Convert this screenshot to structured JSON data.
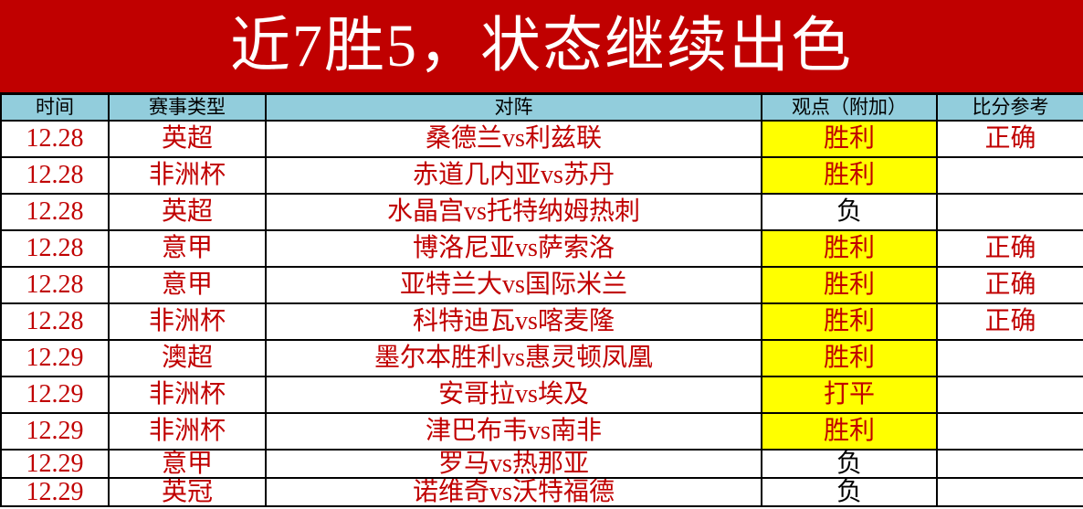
{
  "title": "近7胜5，状态继续出色",
  "headers": [
    "时间",
    "赛事类型",
    "对阵",
    "观点（附加）",
    "比分参考"
  ],
  "colors": {
    "title_bg": "#c00000",
    "header_bg": "#92cddc",
    "highlight": "#ffff00",
    "text": "#c00000"
  },
  "rows": [
    {
      "date": "12.28",
      "league": "英超",
      "match": "桑德兰vs利兹联",
      "pick": "胜利",
      "highlight": true,
      "score": "正确"
    },
    {
      "date": "12.28",
      "league": "非洲杯",
      "match": "赤道几内亚vs苏丹",
      "pick": "胜利",
      "highlight": true,
      "score": ""
    },
    {
      "date": "12.28",
      "league": "英超",
      "match": "水晶宫vs托特纳姆热刺",
      "pick": "负",
      "highlight": false,
      "score": ""
    },
    {
      "date": "12.28",
      "league": "意甲",
      "match": "博洛尼亚vs萨索洛",
      "pick": "胜利",
      "highlight": true,
      "score": "正确"
    },
    {
      "date": "12.28",
      "league": "意甲",
      "match": "亚特兰大vs国际米兰",
      "pick": "胜利",
      "highlight": true,
      "score": "正确"
    },
    {
      "date": "12.28",
      "league": "非洲杯",
      "match": "科特迪瓦vs喀麦隆",
      "pick": "胜利",
      "highlight": true,
      "score": "正确"
    },
    {
      "date": "12.29",
      "league": "澳超",
      "match": "墨尔本胜利vs惠灵顿凤凰",
      "pick": "胜利",
      "highlight": true,
      "score": ""
    },
    {
      "date": "12.29",
      "league": "非洲杯",
      "match": "安哥拉vs埃及",
      "pick": "打平",
      "highlight": true,
      "score": ""
    },
    {
      "date": "12.29",
      "league": "非洲杯",
      "match": "津巴布韦vs南非",
      "pick": "胜利",
      "highlight": true,
      "score": ""
    },
    {
      "date": "12.29",
      "league": "意甲",
      "match": "罗马vs热那亚",
      "pick": "负",
      "highlight": false,
      "score": ""
    },
    {
      "date": "12.29",
      "league": "英冠",
      "match": "诺维奇vs沃特福德",
      "pick": "负",
      "highlight": false,
      "score": ""
    }
  ]
}
